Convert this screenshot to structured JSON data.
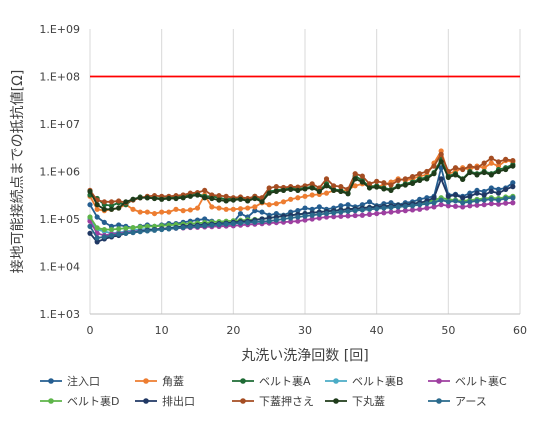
{
  "chart_data": {
    "type": "line",
    "title": "",
    "xlabel": "丸洗い洗浄回数 [回]",
    "ylabel": "接地可能接続点までの抵抗値[Ω]",
    "yscale": "log",
    "ylim": [
      1000,
      1000000000
    ],
    "xlim": [
      0,
      60
    ],
    "xticks": [
      0,
      10,
      20,
      30,
      40,
      50,
      60
    ],
    "xtick_labels": [
      "0",
      "10",
      "20",
      "30",
      "40",
      "50",
      "60"
    ],
    "yticks": [
      1000,
      10000,
      100000,
      1000000,
      10000000,
      100000000,
      1000000000
    ],
    "ytick_labels": [
      "1.E+03",
      "1.E+04",
      "1.E+05",
      "1.E+06",
      "1.E+07",
      "1.E+08",
      "1.E+09"
    ],
    "grid": "vertical",
    "legend_position": "bottom",
    "reference_line": {
      "y": 100000000,
      "color": "#ff0000"
    },
    "x": [
      0,
      1,
      2,
      3,
      4,
      5,
      6,
      7,
      8,
      9,
      10,
      11,
      12,
      13,
      14,
      15,
      16,
      17,
      18,
      19,
      20,
      21,
      22,
      23,
      24,
      25,
      26,
      27,
      28,
      29,
      30,
      31,
      32,
      33,
      34,
      35,
      36,
      37,
      38,
      39,
      40,
      41,
      42,
      43,
      44,
      45,
      46,
      47,
      48,
      49,
      50,
      51,
      52,
      53,
      54,
      55,
      56,
      57,
      58,
      59
    ],
    "series": [
      {
        "name": "注入口",
        "color": "#255e91",
        "values": [
          200000,
          110000,
          85000,
          70000,
          75000,
          70000,
          65000,
          70000,
          75000,
          70000,
          75000,
          80000,
          80000,
          85000,
          90000,
          95000,
          100000,
          90000,
          85000,
          80000,
          85000,
          130000,
          110000,
          150000,
          140000,
          120000,
          130000,
          120000,
          140000,
          150000,
          170000,
          160000,
          180000,
          160000,
          170000,
          190000,
          200000,
          180000,
          200000,
          230000,
          190000,
          210000,
          220000,
          200000,
          220000,
          230000,
          260000,
          280000,
          300000,
          1200000,
          320000,
          330000,
          300000,
          350000,
          400000,
          380000,
          450000,
          420000,
          450000,
          580000
        ]
      },
      {
        "name": "角蓋",
        "color": "#ed7d31",
        "values": [
          300000,
          160000,
          150000,
          160000,
          170000,
          200000,
          160000,
          140000,
          140000,
          130000,
          140000,
          140000,
          160000,
          150000,
          155000,
          170000,
          320000,
          180000,
          170000,
          160000,
          160000,
          165000,
          170000,
          180000,
          220000,
          200000,
          210000,
          230000,
          260000,
          280000,
          300000,
          320000,
          330000,
          350000,
          400000,
          380000,
          420000,
          500000,
          550000,
          500000,
          480000,
          520000,
          600000,
          700000,
          650000,
          700000,
          800000,
          850000,
          1500000,
          2700000,
          900000,
          1000000,
          1200000,
          1100000,
          1300000,
          1200000,
          1500000,
          1300000,
          1700000,
          1600000
        ]
      },
      {
        "name": "ベルト裏A",
        "color": "#1e6b35",
        "values": [
          320000,
          270000,
          200000,
          190000,
          220000,
          200000,
          260000,
          290000,
          280000,
          280000,
          270000,
          280000,
          290000,
          300000,
          330000,
          340000,
          300000,
          300000,
          280000,
          260000,
          270000,
          280000,
          250000,
          300000,
          240000,
          380000,
          400000,
          430000,
          450000,
          430000,
          450000,
          480000,
          400000,
          550000,
          420000,
          400000,
          350000,
          800000,
          650000,
          480000,
          500000,
          450000,
          420000,
          500000,
          550000,
          600000,
          700000,
          750000,
          950000,
          1800000,
          800000,
          900000,
          700000,
          1000000,
          900000,
          1000000,
          900000,
          1100000,
          1200000,
          1400000
        ]
      },
      {
        "name": "ベルト裏B",
        "color": "#4bacc6",
        "values": [
          100000,
          60000,
          55000,
          50000,
          52000,
          55000,
          58000,
          60000,
          62000,
          60000,
          62000,
          65000,
          68000,
          70000,
          72000,
          75000,
          80000,
          78000,
          76000,
          74000,
          80000,
          85000,
          88000,
          95000,
          100000,
          105000,
          110000,
          115000,
          120000,
          125000,
          130000,
          135000,
          140000,
          145000,
          150000,
          155000,
          160000,
          165000,
          170000,
          175000,
          180000,
          185000,
          190000,
          195000,
          200000,
          205000,
          210000,
          220000,
          230000,
          260000,
          240000,
          250000,
          230000,
          240000,
          250000,
          260000,
          270000,
          260000,
          280000,
          290000
        ]
      },
      {
        "name": "ベルト裏C",
        "color": "#9e3fa0",
        "values": [
          90000,
          50000,
          45000,
          48000,
          50000,
          52000,
          54000,
          56000,
          58000,
          60000,
          62000,
          63000,
          64000,
          65000,
          66000,
          67000,
          68000,
          69000,
          70000,
          71000,
          72000,
          74000,
          76000,
          78000,
          80000,
          82000,
          84000,
          86000,
          88000,
          90000,
          95000,
          100000,
          105000,
          110000,
          112000,
          114000,
          116000,
          118000,
          120000,
          125000,
          130000,
          135000,
          140000,
          145000,
          150000,
          155000,
          160000,
          170000,
          180000,
          200000,
          190000,
          185000,
          180000,
          190000,
          195000,
          200000,
          210000,
          205000,
          215000,
          220000
        ]
      },
      {
        "name": "ベルト裏D",
        "color": "#5eb54a",
        "values": [
          110000,
          65000,
          60000,
          60000,
          62000,
          64000,
          66000,
          68000,
          70000,
          70000,
          72000,
          74000,
          76000,
          78000,
          80000,
          82000,
          84000,
          86000,
          88000,
          90000,
          92000,
          94000,
          96000,
          98000,
          100000,
          105000,
          110000,
          115000,
          120000,
          125000,
          130000,
          135000,
          140000,
          145000,
          150000,
          155000,
          160000,
          165000,
          170000,
          175000,
          180000,
          185000,
          190000,
          195000,
          200000,
          210000,
          220000,
          230000,
          250000,
          280000,
          260000,
          250000,
          240000,
          250000,
          260000,
          270000,
          280000,
          270000,
          290000,
          300000
        ]
      },
      {
        "name": "排出口",
        "color": "#203864",
        "values": [
          50000,
          33000,
          38000,
          42000,
          45000,
          50000,
          52000,
          55000,
          58000,
          60000,
          62000,
          64000,
          66000,
          70000,
          72000,
          74000,
          76000,
          78000,
          80000,
          82000,
          85000,
          88000,
          90000,
          95000,
          100000,
          105000,
          110000,
          115000,
          120000,
          125000,
          130000,
          135000,
          140000,
          145000,
          150000,
          155000,
          160000,
          165000,
          170000,
          175000,
          180000,
          185000,
          190000,
          195000,
          200000,
          210000,
          220000,
          240000,
          280000,
          700000,
          300000,
          320000,
          280000,
          300000,
          350000,
          320000,
          380000,
          350000,
          420000,
          480000
        ]
      },
      {
        "name": "下蓋押さえ",
        "color": "#a54d22",
        "values": [
          400000,
          250000,
          230000,
          230000,
          240000,
          220000,
          250000,
          280000,
          300000,
          310000,
          300000,
          300000,
          310000,
          320000,
          350000,
          360000,
          400000,
          320000,
          310000,
          300000,
          280000,
          290000,
          270000,
          300000,
          280000,
          450000,
          480000,
          460000,
          480000,
          470000,
          500000,
          550000,
          450000,
          700000,
          500000,
          480000,
          420000,
          900000,
          800000,
          550000,
          620000,
          580000,
          520000,
          650000,
          700000,
          780000,
          900000,
          1000000,
          1300000,
          2300000,
          1000000,
          1200000,
          1100000,
          1300000,
          1200000,
          1500000,
          1900000,
          1600000,
          1800000,
          1700000
        ]
      },
      {
        "name": "下丸蓋",
        "color": "#1f3b1a",
        "values": [
          380000,
          200000,
          160000,
          160000,
          170000,
          230000,
          260000,
          280000,
          280000,
          270000,
          260000,
          270000,
          270000,
          280000,
          300000,
          320000,
          280000,
          270000,
          250000,
          240000,
          250000,
          260000,
          240000,
          270000,
          230000,
          350000,
          380000,
          400000,
          420000,
          400000,
          430000,
          450000,
          380000,
          500000,
          400000,
          380000,
          340000,
          700000,
          600000,
          450000,
          470000,
          430000,
          400000,
          480000,
          520000,
          560000,
          650000,
          700000,
          900000,
          1600000,
          750000,
          850000,
          680000,
          950000,
          850000,
          950000,
          850000,
          1000000,
          1100000,
          1300000
        ]
      },
      {
        "name": "アース",
        "color": "#2a6a8c",
        "values": [
          70000,
          40000,
          42000,
          45000,
          48000,
          50000,
          52000,
          54000,
          56000,
          58000,
          60000,
          62000,
          64000,
          66000,
          68000,
          70000,
          72000,
          74000,
          76000,
          78000,
          80000,
          82000,
          84000,
          86000,
          88000,
          90000,
          95000,
          100000,
          105000,
          110000,
          115000,
          120000,
          125000,
          130000,
          135000,
          140000,
          145000,
          150000,
          155000,
          160000,
          165000,
          170000,
          175000,
          180000,
          185000,
          190000,
          200000,
          210000,
          220000,
          250000,
          230000,
          240000,
          220000,
          230000,
          240000,
          250000,
          260000,
          250000,
          270000,
          280000
        ]
      }
    ]
  }
}
